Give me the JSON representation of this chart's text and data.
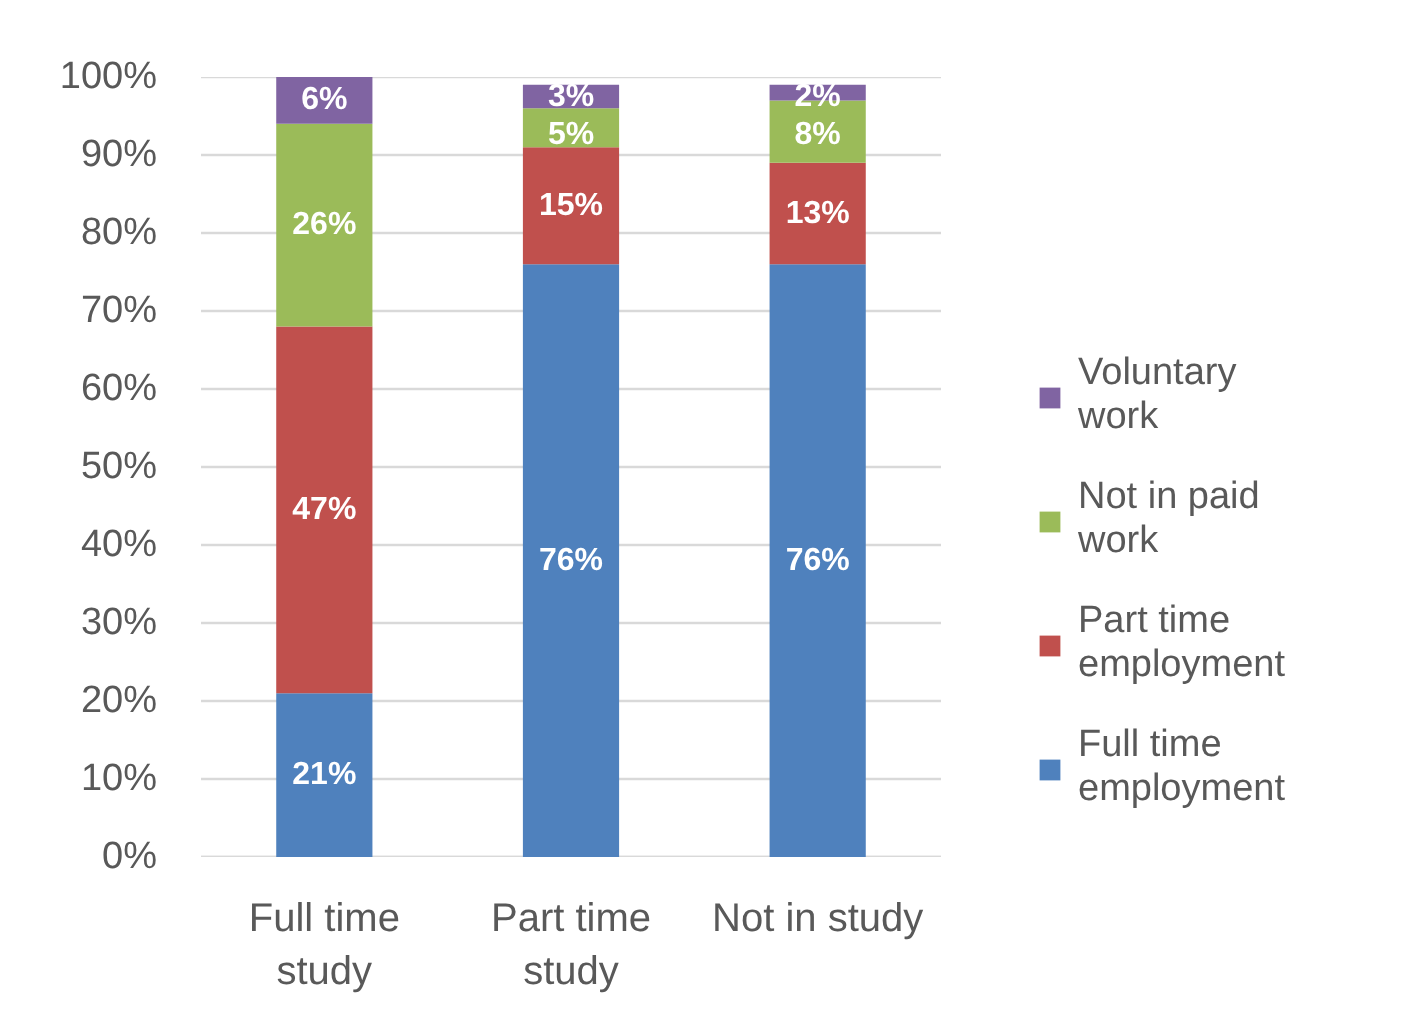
{
  "chart_data": {
    "type": "bar",
    "stacked": true,
    "categories": [
      "Full time study",
      "Part time study",
      "Not in study"
    ],
    "series": [
      {
        "name": "Full time employment",
        "color": "#4f81bd",
        "values": [
          21,
          76,
          76
        ],
        "value_labels": [
          "21%",
          "76%",
          "76%"
        ]
      },
      {
        "name": "Part time employment",
        "color": "#c0504d",
        "values": [
          47,
          15,
          13
        ],
        "value_labels": [
          "47%",
          "15%",
          "13%"
        ]
      },
      {
        "name": "Not in paid work",
        "color": "#9bbb59",
        "values": [
          26,
          5,
          8
        ],
        "value_labels": [
          "26%",
          "5%",
          "8%"
        ]
      },
      {
        "name": "Voluntary work",
        "color": "#8064a2",
        "values": [
          6,
          3,
          2
        ],
        "value_labels": [
          "6%",
          "3%",
          "2%"
        ]
      }
    ],
    "ylim": [
      0,
      100
    ],
    "yticks": [
      {
        "value": 0,
        "label": "0%"
      },
      {
        "value": 10,
        "label": "10%"
      },
      {
        "value": 20,
        "label": "20%"
      },
      {
        "value": 30,
        "label": "30%"
      },
      {
        "value": 40,
        "label": "40%"
      },
      {
        "value": 50,
        "label": "50%"
      },
      {
        "value": 60,
        "label": "60%"
      },
      {
        "value": 70,
        "label": "70%"
      },
      {
        "value": 80,
        "label": "80%"
      },
      {
        "value": 90,
        "label": "90%"
      },
      {
        "value": 100,
        "label": "100%"
      }
    ],
    "grid": "y",
    "legend": "right"
  }
}
